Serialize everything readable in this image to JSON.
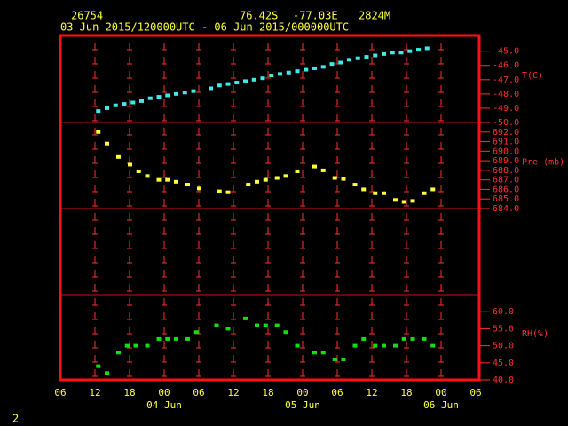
{
  "header": {
    "station": "26754",
    "lat": "76.42S",
    "lon": "-77.03E",
    "elev": "2824M",
    "period": "03 Jun 2015/120000UTC - 06 Jun 2015/000000UTC"
  },
  "page_number": "2",
  "chart_data": [
    {
      "type": "scatter",
      "ylabel": "T(C)",
      "color": "#40e8e8",
      "x": [
        12.5,
        14,
        15.5,
        17,
        18.5,
        20,
        21.5,
        23,
        24.5,
        26,
        27.5,
        29,
        30.5,
        32,
        33.5,
        35,
        36.5,
        38,
        39.5,
        41,
        42.5,
        44,
        45.5,
        47,
        48.5,
        50,
        51.5,
        53,
        54.5,
        56,
        57.5,
        59,
        60.5,
        62,
        63.5,
        65,
        66.5,
        68,
        69.5
      ],
      "values": [
        -49.2,
        -49.0,
        -48.8,
        -48.7,
        -48.6,
        -48.5,
        -48.3,
        -48.2,
        -48.1,
        -48.0,
        -47.9,
        -47.8,
        null,
        -47.6,
        -47.4,
        -47.3,
        -47.2,
        -47.1,
        -47.0,
        -46.9,
        -46.7,
        -46.6,
        -46.5,
        -46.4,
        -46.3,
        -46.2,
        -46.1,
        -45.9,
        -45.8,
        -45.6,
        -45.5,
        -45.4,
        -45.3,
        -45.2,
        -45.1,
        -45.1,
        -45.0,
        -44.9,
        -44.8
      ],
      "xlim": [
        6,
        78
      ],
      "ylim": [
        -50,
        -43.9
      ],
      "yticks": [
        {
          "value": -45,
          "label": "-45.0"
        },
        {
          "value": -46,
          "label": "-46.0"
        },
        {
          "value": -47,
          "label": "-47.0"
        },
        {
          "value": -48,
          "label": "-48.0"
        },
        {
          "value": -49,
          "label": "-49.0"
        },
        {
          "value": -50,
          "label": "-50.0"
        }
      ]
    },
    {
      "type": "scatter",
      "ylabel": "Pre (mb)",
      "color": "#ffff40",
      "x": [
        12.5,
        14,
        16,
        18,
        19.5,
        21,
        23,
        24.5,
        26,
        28,
        30,
        33.5,
        35,
        38.5,
        40,
        41.5,
        43.5,
        45,
        47,
        50,
        51.5,
        53.5,
        55,
        57,
        58.5,
        60.5,
        62,
        64,
        65.5,
        67,
        69,
        70.5
      ],
      "values": [
        692.0,
        690.8,
        689.4,
        688.6,
        687.9,
        687.4,
        687.0,
        687.0,
        686.8,
        686.5,
        686.1,
        685.8,
        685.7,
        686.5,
        686.8,
        687.0,
        687.2,
        687.4,
        687.9,
        688.4,
        688.0,
        687.2,
        687.1,
        686.5,
        686.0,
        685.6,
        685.6,
        684.9,
        684.7,
        684.8,
        685.6,
        686.0
      ],
      "xlim": [
        6,
        78
      ],
      "ylim": [
        684,
        693
      ],
      "yticks": [
        {
          "value": 692,
          "label": "692.0"
        },
        {
          "value": 691,
          "label": "691.0"
        },
        {
          "value": 690,
          "label": "690.0"
        },
        {
          "value": 689,
          "label": "689.0"
        },
        {
          "value": 688,
          "label": "688.0"
        },
        {
          "value": 687,
          "label": "687.0"
        },
        {
          "value": 686,
          "label": "686.0"
        },
        {
          "value": 685,
          "label": "685.0"
        },
        {
          "value": 684,
          "label": "684.0"
        }
      ]
    },
    {
      "type": "scatter",
      "ylabel": "RH(%)",
      "color": "#10e010",
      "x": [
        12.5,
        14,
        16,
        17.5,
        19,
        21,
        23,
        24.5,
        26,
        28,
        29.5,
        33,
        35,
        38,
        40,
        41.5,
        43.5,
        45,
        47,
        50,
        51.5,
        53.5,
        55,
        57,
        58.5,
        60.5,
        62,
        64,
        65.5,
        67,
        69,
        70.5
      ],
      "values": [
        44,
        42,
        48,
        50,
        50,
        50,
        52,
        52,
        52,
        52,
        54,
        56,
        55,
        58,
        56,
        56,
        56,
        54,
        50,
        48,
        48,
        46,
        46,
        50,
        52,
        50,
        50,
        50,
        52,
        52,
        52,
        50
      ],
      "xlim": [
        6,
        78
      ],
      "ylim": [
        40,
        65
      ],
      "yticks": [
        {
          "value": 60,
          "label": "60.0"
        },
        {
          "value": 55,
          "label": "55.0"
        },
        {
          "value": 50,
          "label": "50.0"
        },
        {
          "value": 45,
          "label": "45.0"
        },
        {
          "value": 40,
          "label": "40.0"
        }
      ],
      "xticks": [
        {
          "value": 6,
          "label": "06"
        },
        {
          "value": 12,
          "label": "12"
        },
        {
          "value": 18,
          "label": "18"
        },
        {
          "value": 24,
          "label": "00"
        },
        {
          "value": 30,
          "label": "06"
        },
        {
          "value": 36,
          "label": "12"
        },
        {
          "value": 42,
          "label": "18"
        },
        {
          "value": 48,
          "label": "00"
        },
        {
          "value": 54,
          "label": "06"
        },
        {
          "value": 60,
          "label": "12"
        },
        {
          "value": 66,
          "label": "18"
        },
        {
          "value": 72,
          "label": "00"
        },
        {
          "value": 78,
          "label": "06"
        }
      ],
      "day_labels": [
        {
          "value": 24,
          "label": "04 Jun"
        },
        {
          "value": 48,
          "label": "05 Jun"
        },
        {
          "value": 72,
          "label": "06 Jun"
        }
      ]
    }
  ]
}
